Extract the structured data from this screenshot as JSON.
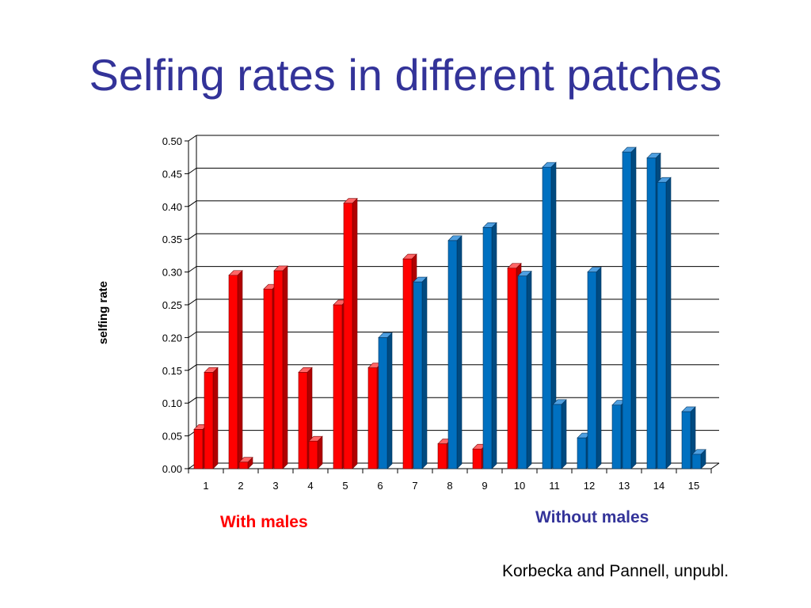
{
  "title": "Selfing rates in different patches",
  "group_labels": {
    "with": "With males",
    "without": "Without males"
  },
  "citation": "Korbecka and Pannell, unpubl.",
  "colors": {
    "red": "#ff0000",
    "blue": "#0070c0",
    "title": "#333399"
  },
  "chart_data": {
    "type": "bar",
    "title": "",
    "xlabel": "",
    "ylabel": "selfing rate",
    "ylim": [
      0,
      0.5
    ],
    "yticks": [
      "0.00",
      "0.05",
      "0.10",
      "0.15",
      "0.20",
      "0.25",
      "0.30",
      "0.35",
      "0.40",
      "0.45",
      "0.50"
    ],
    "grid": true,
    "categories": [
      "1",
      "2",
      "3",
      "4",
      "5",
      "6",
      "7",
      "8",
      "9",
      "10",
      "11",
      "12",
      "13",
      "14",
      "15"
    ],
    "bars": [
      [
        {
          "value": 0.06,
          "color": "red"
        },
        {
          "value": 0.147,
          "color": "red"
        }
      ],
      [
        {
          "value": 0.295,
          "color": "red"
        },
        {
          "value": 0.01,
          "color": "red"
        }
      ],
      [
        {
          "value": 0.274,
          "color": "red"
        },
        {
          "value": 0.302,
          "color": "red"
        }
      ],
      [
        {
          "value": 0.147,
          "color": "red"
        },
        {
          "value": 0.042,
          "color": "red"
        }
      ],
      [
        {
          "value": 0.25,
          "color": "red"
        },
        {
          "value": 0.405,
          "color": "red"
        }
      ],
      [
        {
          "value": 0.154,
          "color": "red"
        },
        {
          "value": 0.2,
          "color": "blue"
        }
      ],
      [
        {
          "value": 0.32,
          "color": "red"
        },
        {
          "value": 0.285,
          "color": "blue"
        }
      ],
      [
        {
          "value": 0.038,
          "color": "red"
        },
        {
          "value": 0.348,
          "color": "blue"
        }
      ],
      [
        {
          "value": 0.03,
          "color": "red"
        },
        {
          "value": 0.368,
          "color": "blue"
        }
      ],
      [
        {
          "value": 0.306,
          "color": "red"
        },
        {
          "value": 0.294,
          "color": "blue"
        }
      ],
      [
        {
          "value": 0.46,
          "color": "blue"
        },
        {
          "value": 0.098,
          "color": "blue"
        }
      ],
      [
        {
          "value": 0.047,
          "color": "blue"
        },
        {
          "value": 0.3,
          "color": "blue"
        }
      ],
      [
        {
          "value": 0.097,
          "color": "blue"
        },
        {
          "value": 0.483,
          "color": "blue"
        }
      ],
      [
        {
          "value": 0.474,
          "color": "blue"
        },
        {
          "value": 0.437,
          "color": "blue"
        }
      ],
      [
        {
          "value": 0.087,
          "color": "blue"
        },
        {
          "value": 0.022,
          "color": "blue"
        }
      ]
    ]
  }
}
